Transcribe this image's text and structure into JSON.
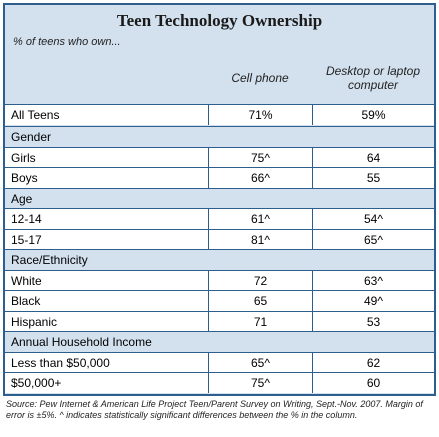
{
  "title": "Teen Technology Ownership",
  "subtitle": "% of teens who own...",
  "columns": [
    "Cell phone",
    "Desktop or laptop computer"
  ],
  "rows": [
    {
      "label": "All Teens",
      "values": [
        "71%",
        "59%"
      ]
    },
    {
      "section": "Gender"
    },
    {
      "label": "Girls",
      "values": [
        "75^",
        "64"
      ]
    },
    {
      "label": "Boys",
      "values": [
        "66^",
        "55"
      ]
    },
    {
      "section": "Age"
    },
    {
      "label": "12-14",
      "values": [
        "61^",
        "54^"
      ]
    },
    {
      "label": "15-17",
      "values": [
        "81^",
        "65^"
      ]
    },
    {
      "section": "Race/Ethnicity"
    },
    {
      "label": "White",
      "values": [
        "72",
        "63^"
      ]
    },
    {
      "label": "Black",
      "values": [
        "65",
        "49^"
      ]
    },
    {
      "label": "Hispanic",
      "values": [
        "71",
        "53"
      ]
    },
    {
      "section": "Annual Household Income"
    },
    {
      "label": "Less than $50,000",
      "values": [
        "65^",
        "62"
      ]
    },
    {
      "label": "$50,000+",
      "values": [
        "75^",
        "60"
      ]
    }
  ],
  "footnote": "Source: Pew Internet & American Life Project Teen/Parent Survey on Writing, Sept.-Nov. 2007. Margin of error is ±5%. ^ indicates statistically significant differences between the % in the column."
}
